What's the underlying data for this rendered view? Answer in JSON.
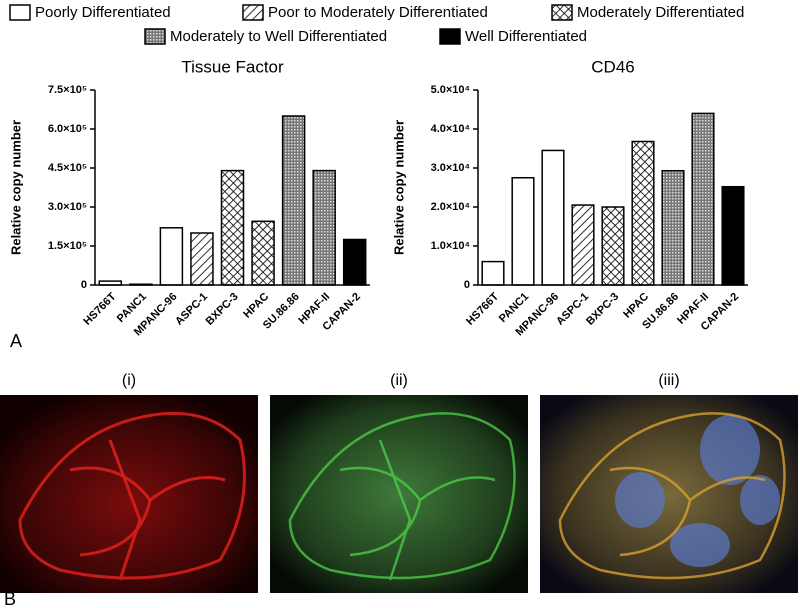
{
  "legend": [
    {
      "name": "Poorly Differentiated",
      "pattern": "white"
    },
    {
      "name": "Poor to Moderately Differentiated",
      "pattern": "diag"
    },
    {
      "name": "Moderately Differentiated",
      "pattern": "cross"
    },
    {
      "name": "Moderately to Well Differentiated",
      "pattern": "fine"
    },
    {
      "name": "Well Differentiated",
      "pattern": "black"
    }
  ],
  "chart_data": [
    {
      "type": "bar",
      "title": "Tissue Factor",
      "y_label": "Relative copy number",
      "categories": [
        "HS766T",
        "PANC1",
        "MPANC-96",
        "ASPC-1",
        "BXPC-3",
        "HPAC",
        "SU.86.86",
        "HPAF-II",
        "CAPAN-2"
      ],
      "values": [
        15000,
        3000,
        220000,
        200000,
        440000,
        245000,
        650000,
        440000,
        175000
      ],
      "bar_legend": [
        0,
        0,
        0,
        1,
        2,
        2,
        3,
        3,
        4
      ],
      "ylim": [
        0,
        750000
      ],
      "yticks": [
        0,
        {
          "value": 150000,
          "label": "1.5×10⁵"
        },
        {
          "value": 300000,
          "label": "3.0×10⁵"
        },
        {
          "value": 450000,
          "label": "4.5×10⁵"
        },
        {
          "value": 600000,
          "label": "6.0×10⁵"
        },
        {
          "value": 750000,
          "label": "7.5×10⁵"
        }
      ]
    },
    {
      "type": "bar",
      "title": "CD46",
      "y_label": "Relative copy number",
      "categories": [
        "HS766T",
        "PANC1",
        "MPANC-96",
        "ASPC-1",
        "BXPC-3",
        "HPAC",
        "SU.86.86",
        "HPAF-II",
        "CAPAN-2"
      ],
      "values": [
        6000,
        27500,
        34500,
        20500,
        20000,
        36800,
        29300,
        44000,
        25200
      ],
      "bar_legend": [
        0,
        0,
        0,
        1,
        2,
        2,
        3,
        3,
        4
      ],
      "ylim": [
        0,
        50000
      ],
      "yticks": [
        0,
        {
          "value": 10000,
          "label": "1.0×10⁴"
        },
        {
          "value": 20000,
          "label": "2.0×10⁴"
        },
        {
          "value": 30000,
          "label": "3.0×10⁴"
        },
        {
          "value": 40000,
          "label": "4.0×10⁴"
        },
        {
          "value": 50000,
          "label": "5.0×10⁴"
        }
      ]
    }
  ],
  "panel_a": "A",
  "panel_b": "B",
  "images": [
    "(i)",
    "(ii)",
    "(iii)"
  ]
}
